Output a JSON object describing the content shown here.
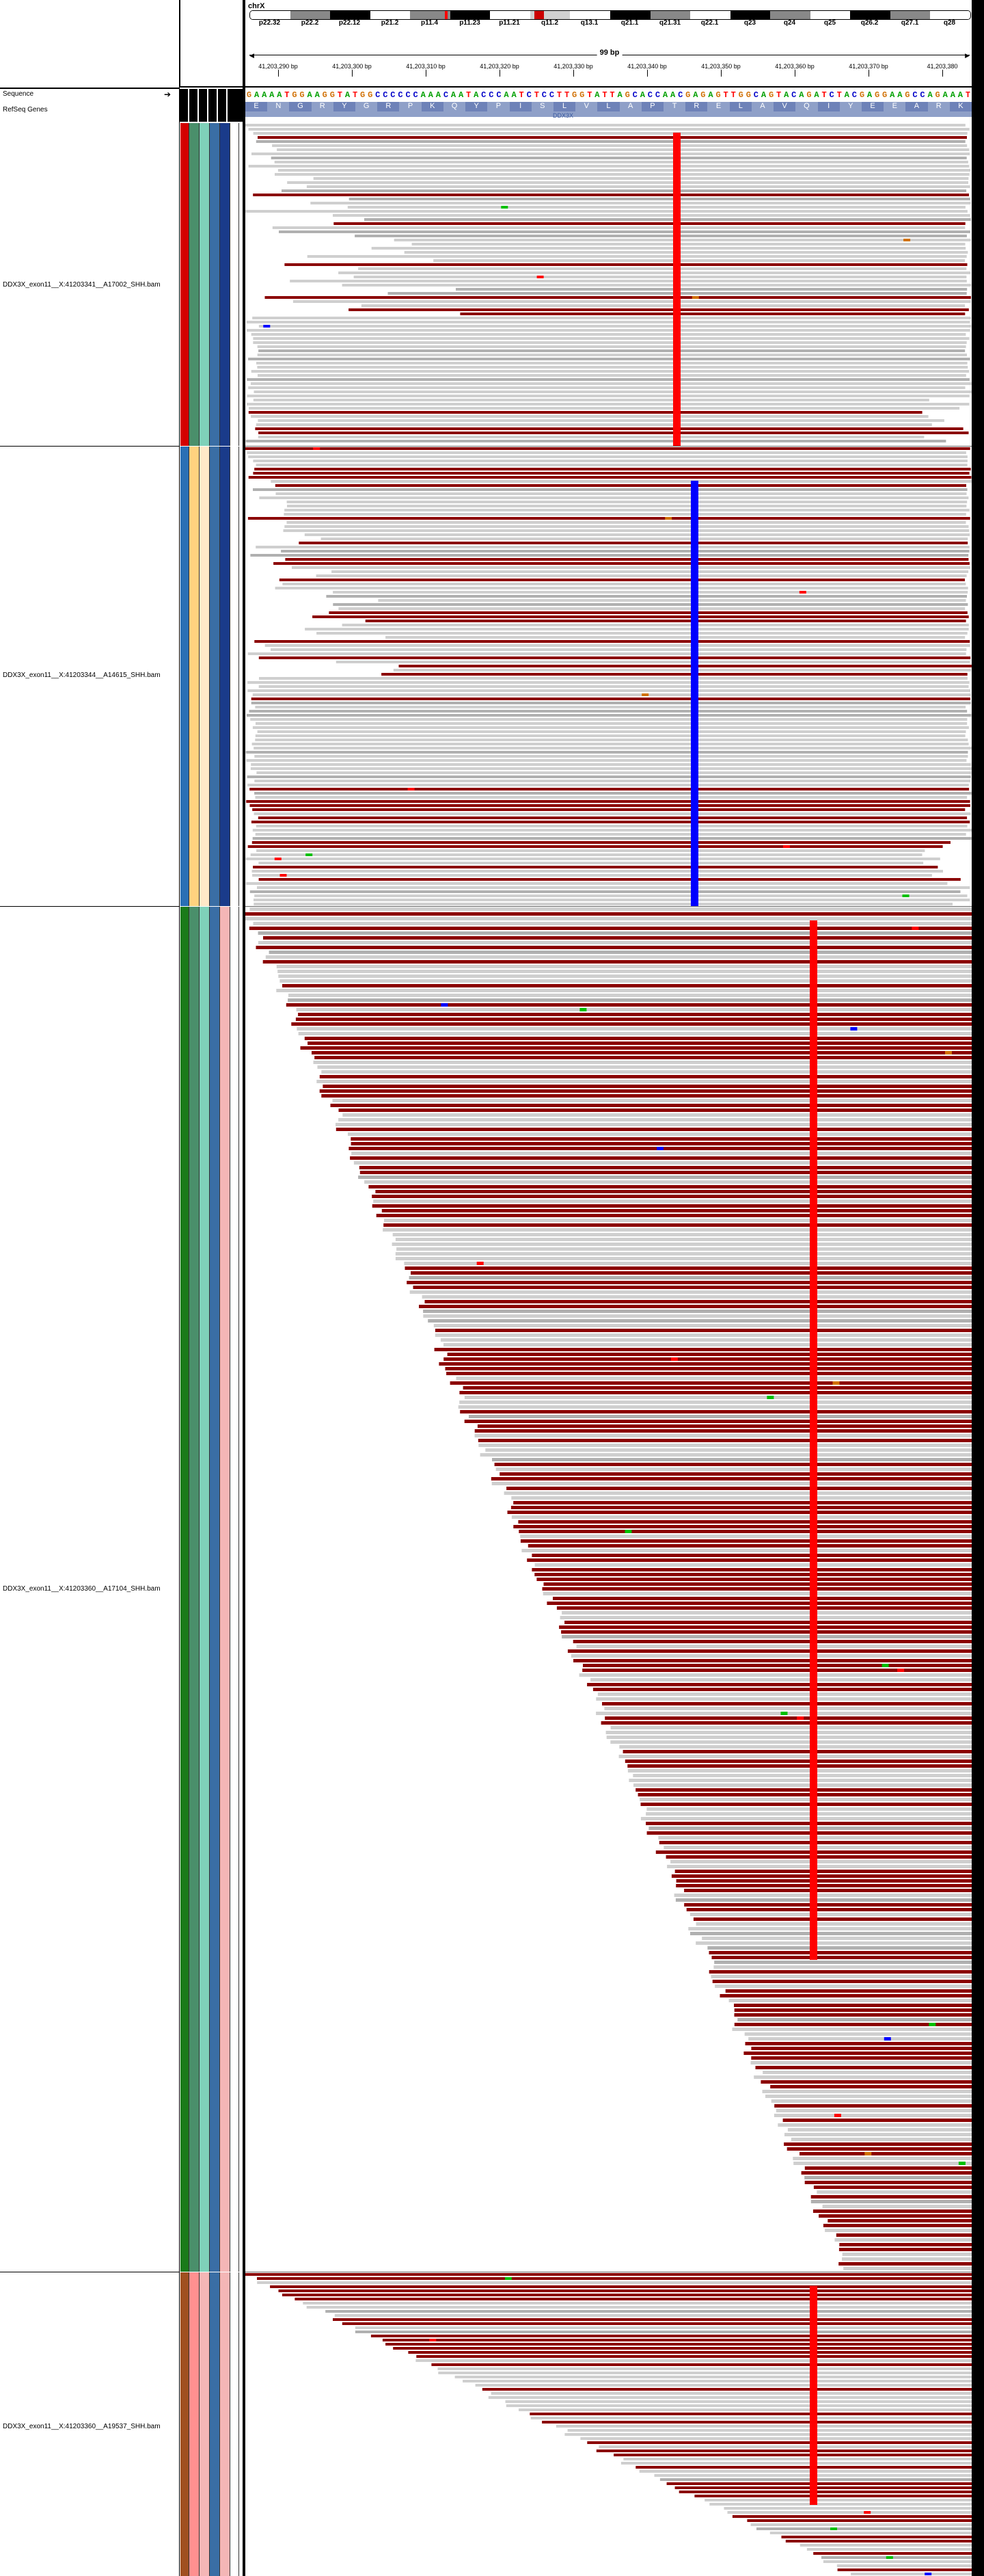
{
  "header": {
    "chromosome": "chrX",
    "region_width": "99 bp",
    "bands": [
      "p22.32",
      "p22.2",
      "p22.12",
      "p21.2",
      "p11.4",
      "p11.23",
      "p11.21",
      "q11.2",
      "q13.1",
      "q21.1",
      "q21.31",
      "q22.1",
      "q23",
      "q24",
      "q25",
      "q26.2",
      "q27.1",
      "q28"
    ],
    "ticks": [
      "41,203,290 bp",
      "41,203,300 bp",
      "41,203,310 bp",
      "41,203,320 bp",
      "41,203,330 bp",
      "41,203,340 bp",
      "41,203,350 bp",
      "41,203,360 bp",
      "41,203,370 bp",
      "41,203,380"
    ]
  },
  "tracks": {
    "sequence_label": "Sequence",
    "refseq_label": "RefSeq Genes",
    "sequence": "GAAAATGGAAGGTATGGCCCCCCAAACAATACCCAATCTCCTTGGTATTAGCACCAACGAGAGTTGGCAGTACAGATCTACGAGGAAGCCAGAAAT",
    "amino_acids": [
      "E",
      "N",
      "G",
      "R",
      "Y",
      "G",
      "R",
      "P",
      "K",
      "Q",
      "Y",
      "P",
      "I",
      "S",
      "L",
      "V",
      "L",
      "A",
      "P",
      "T",
      "R",
      "E",
      "L",
      "A",
      "V",
      "Q",
      "I",
      "Y",
      "E",
      "E",
      "A",
      "R",
      "K"
    ],
    "gene_name": "DDX3X",
    "bams": [
      {
        "name": "DDX3X_exon11__X:41203341__A17002_SHH.bam"
      },
      {
        "name": "DDX3X_exon11__X:41203344__A14615_SHH.bam"
      },
      {
        "name": "DDX3X_exon11__X:41203360__A17104_SHH.bam"
      },
      {
        "name": "DDX3X_exon11__X:41203360__A19537_SHH.bam"
      }
    ]
  },
  "colors": {
    "read_gray": "#c8c8c8",
    "insert_red": "#8b0000",
    "mismatch_red": "#ff0000",
    "mismatch_blue": "#0000ff",
    "mismatch_green": "#00a000",
    "gene_blue": "#8fa0c8"
  },
  "icons": [
    "strand-arrow-icon"
  ]
}
